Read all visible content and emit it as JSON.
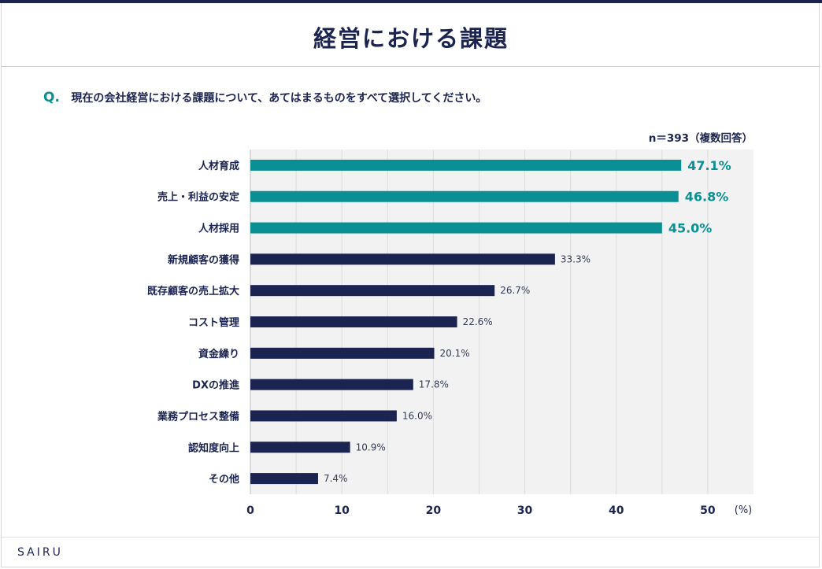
{
  "header": {
    "title": "経営における課題"
  },
  "question": {
    "marker": "Q.",
    "text": "現在の会社経営における課題について、あてはまるものをすべて選択してください。"
  },
  "sample_note": "n＝393（複数回答）",
  "footer": {
    "brand": "SAIRU"
  },
  "colors": {
    "highlight": "#0a9094",
    "default": "#1b2350",
    "plot_bg": "#f2f2f2",
    "grid": "#dcdcdc"
  },
  "chart_data": {
    "type": "bar",
    "orientation": "horizontal",
    "categories": [
      "人材育成",
      "売上・利益の安定",
      "人材採用",
      "新規顧客の獲得",
      "既存顧客の売上拡大",
      "コスト管理",
      "資金繰り",
      "DXの推進",
      "業務プロセス整備",
      "認知度向上",
      "その他"
    ],
    "values": [
      47.1,
      46.8,
      45.0,
      33.3,
      26.7,
      22.6,
      20.1,
      17.8,
      16.0,
      10.9,
      7.4
    ],
    "value_labels": [
      "47.1%",
      "46.8%",
      "45.0%",
      "33.3%",
      "26.7%",
      "22.6%",
      "20.1%",
      "17.8%",
      "16.0%",
      "10.9%",
      "7.4%"
    ],
    "highlighted_count": 3,
    "x_ticks": [
      "0",
      "10",
      "20",
      "30",
      "40",
      "50"
    ],
    "x_unit": "(%)",
    "xlim": [
      0,
      55
    ],
    "grid": true
  }
}
